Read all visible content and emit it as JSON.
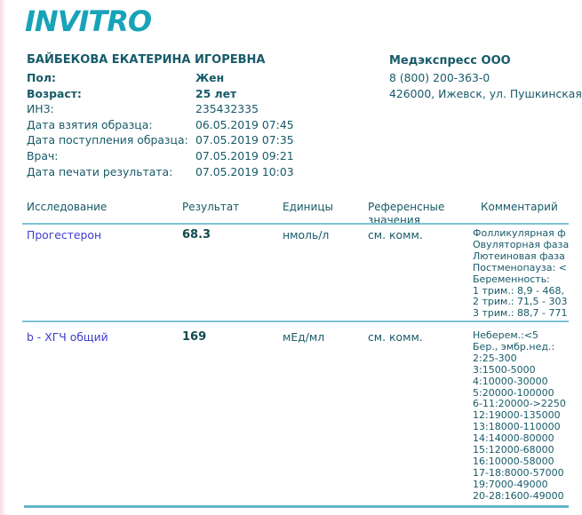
{
  "document": {
    "logo": "INVITRO",
    "patient": {
      "name": "БАЙБЕКОВА ЕКАТЕРИНА ИГОРЕВНА",
      "info": [
        {
          "label": "Пол:",
          "value": "Жен"
        },
        {
          "label": "Возраст:",
          "value": "25 лет"
        },
        {
          "label": "ИНЗ:",
          "value": "235432335"
        },
        {
          "label": "Дата взятия образца:",
          "value": "06.05.2019 07:45"
        },
        {
          "label": "Дата поступления образца:",
          "value": "07.05.2019 07:35"
        },
        {
          "label": "Врач:",
          "value": "07.05.2019 09:21"
        },
        {
          "label": "Дата печати результата:",
          "value": "07.05.2019 10:03"
        }
      ]
    },
    "clinic": {
      "name": "Медэкспресс ООО",
      "phone": "8 (800) 200-363-0",
      "address": "426000, Ижевск, ул. Пушкинская"
    },
    "table": {
      "headers": [
        "Исследование",
        "Результат",
        "Единицы",
        "Референсные значения",
        "Комментарий"
      ],
      "rows": [
        {
          "test": "Прогестерон",
          "result": "68.3",
          "units": "нмоль/л",
          "reference": "см. комм.",
          "comment_lines": [
            "Фолликулярная ф",
            "Овуляторная фаза",
            "Лютеиновая фаза",
            "Постменопауза: <",
            "Беременность:",
            "1 трим.: 8,9 - 468,",
            "2 трим.: 71,5 - 303",
            "3 трим.: 88,7 - 771"
          ]
        },
        {
          "test": "b - ХГЧ общий",
          "result": "169",
          "units": "мЕд/мл",
          "reference": "см. комм.",
          "comment_lines": [
            "Неберем.:<5",
            "Бер., эмбр.нед.:",
            "2:25-300",
            "3:1500-5000",
            "4:10000-30000",
            "5:20000-100000",
            "6-11:20000->2250",
            "12:19000-135000",
            "13:18000-110000",
            "14:14000-80000",
            "15:12000-68000",
            "16:10000-58000",
            "17-18:8000-57000",
            "19:7000-49000",
            "20-28:1600-49000"
          ]
        }
      ]
    },
    "colors": {
      "brand_teal": "#17a3b8",
      "text_dark_teal": "#175a68",
      "link_blue": "#3c3ccd",
      "divider_teal": "#7cc3d2",
      "bottom_line_teal": "#62b5c7"
    }
  }
}
